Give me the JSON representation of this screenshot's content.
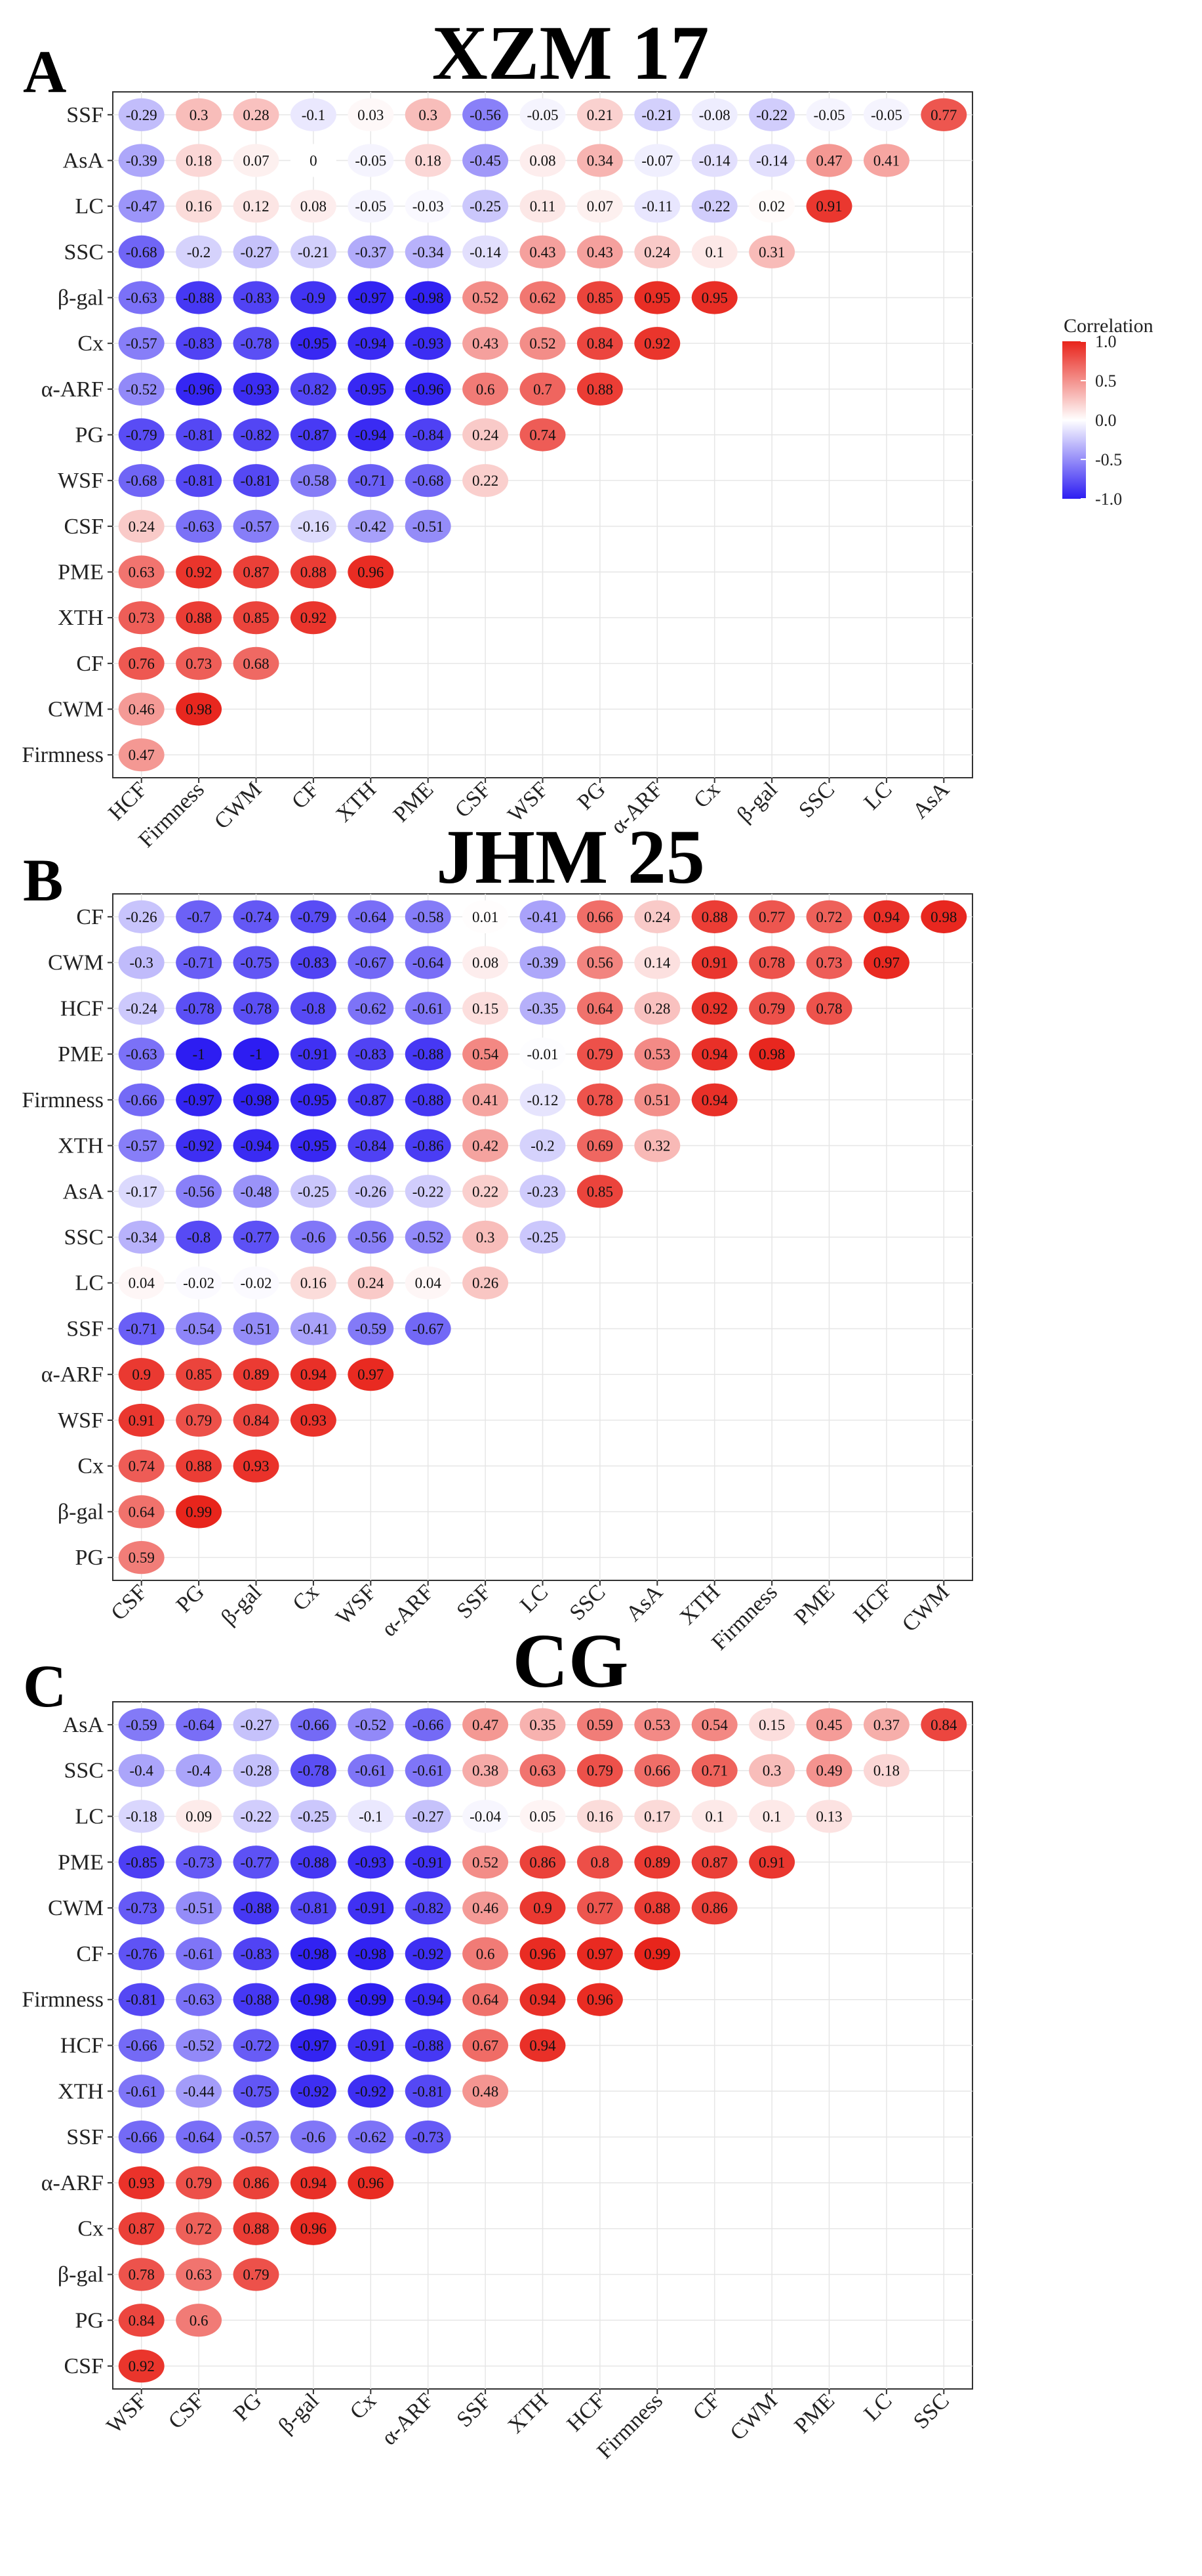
{
  "legend": {
    "title": "Correlation",
    "ticks": [
      "1.0",
      "0.5",
      "0.0",
      "-0.5",
      "-1.0"
    ],
    "tick_values": [
      1.0,
      0.5,
      0.0,
      -0.5,
      -1.0
    ],
    "colors": {
      "positive": "#e8231a",
      "neutral": "#ffffff",
      "negative": "#2d1df2"
    }
  },
  "chart_data": [
    {
      "type": "heatmap",
      "panel": "A",
      "title": "XZM 17",
      "rows": [
        "SSF",
        "AsA",
        "LC",
        "SSC",
        "β-gal",
        "Cx",
        "α-ARF",
        "PG",
        "WSF",
        "CSF",
        "PME",
        "XTH",
        "CF",
        "CWM",
        "Firmness"
      ],
      "cols": [
        "HCF",
        "Firmness",
        "CWM",
        "CF",
        "XTH",
        "PME",
        "CSF",
        "WSF",
        "PG",
        "α-ARF",
        "Cx",
        "β-gal",
        "SSC",
        "LC",
        "AsA"
      ],
      "values": [
        [
          "-0.29",
          "0.3",
          "0.28",
          "-0.1",
          "0.03",
          "0.3",
          "-0.56",
          "-0.05",
          "0.21",
          "-0.21",
          "-0.08",
          "-0.22",
          "-0.05",
          "-0.05",
          "0.77"
        ],
        [
          "-0.39",
          "0.18",
          "0.07",
          "0",
          "-0.05",
          "0.18",
          "-0.45",
          "0.08",
          "0.34",
          "-0.07",
          "-0.14",
          "-0.14",
          "0.47",
          "0.41"
        ],
        [
          "-0.47",
          "0.16",
          "0.12",
          "0.08",
          "-0.05",
          "-0.03",
          "-0.25",
          "0.11",
          "0.07",
          "-0.11",
          "-0.22",
          "0.02",
          "0.91"
        ],
        [
          "-0.68",
          "-0.2",
          "-0.27",
          "-0.21",
          "-0.37",
          "-0.34",
          "-0.14",
          "0.43",
          "0.43",
          "0.24",
          "0.1",
          "0.31"
        ],
        [
          "-0.63",
          "-0.88",
          "-0.83",
          "-0.9",
          "-0.97",
          "-0.98",
          "0.52",
          "0.62",
          "0.85",
          "0.95",
          "0.95"
        ],
        [
          "-0.57",
          "-0.83",
          "-0.78",
          "-0.95",
          "-0.94",
          "-0.93",
          "0.43",
          "0.52",
          "0.84",
          "0.92"
        ],
        [
          "-0.52",
          "-0.96",
          "-0.93",
          "-0.82",
          "-0.95",
          "-0.96",
          "0.6",
          "0.7",
          "0.88"
        ],
        [
          "-0.79",
          "-0.81",
          "-0.82",
          "-0.87",
          "-0.94",
          "-0.84",
          "0.24",
          "0.74"
        ],
        [
          "-0.68",
          "-0.81",
          "-0.81",
          "-0.58",
          "-0.71",
          "-0.68",
          "0.22"
        ],
        [
          "0.24",
          "-0.63",
          "-0.57",
          "-0.16",
          "-0.42",
          "-0.51"
        ],
        [
          "0.63",
          "0.92",
          "0.87",
          "0.88",
          "0.96"
        ],
        [
          "0.73",
          "0.88",
          "0.85",
          "0.92"
        ],
        [
          "0.76",
          "0.73",
          "0.68"
        ],
        [
          "0.46",
          "0.98"
        ],
        [
          "0.47"
        ]
      ]
    },
    {
      "type": "heatmap",
      "panel": "B",
      "title": "JHM 25",
      "rows": [
        "CF",
        "CWM",
        "HCF",
        "PME",
        "Firmness",
        "XTH",
        "AsA",
        "SSC",
        "LC",
        "SSF",
        "α-ARF",
        "WSF",
        "Cx",
        "β-gal",
        "PG"
      ],
      "cols": [
        "CSF",
        "PG",
        "β-gal",
        "Cx",
        "WSF",
        "α-ARF",
        "SSF",
        "LC",
        "SSC",
        "AsA",
        "XTH",
        "Firmness",
        "PME",
        "HCF",
        "CWM"
      ],
      "values": [
        [
          "-0.26",
          "-0.7",
          "-0.74",
          "-0.79",
          "-0.64",
          "-0.58",
          "0.01",
          "-0.41",
          "0.66",
          "0.24",
          "0.88",
          "0.77",
          "0.72",
          "0.94",
          "0.98"
        ],
        [
          "-0.3",
          "-0.71",
          "-0.75",
          "-0.83",
          "-0.67",
          "-0.64",
          "0.08",
          "-0.39",
          "0.56",
          "0.14",
          "0.91",
          "0.78",
          "0.73",
          "0.97"
        ],
        [
          "-0.24",
          "-0.78",
          "-0.78",
          "-0.8",
          "-0.62",
          "-0.61",
          "0.15",
          "-0.35",
          "0.64",
          "0.28",
          "0.92",
          "0.79",
          "0.78"
        ],
        [
          "-0.63",
          "-1",
          "-1",
          "-0.91",
          "-0.83",
          "-0.88",
          "0.54",
          "-0.01",
          "0.79",
          "0.53",
          "0.94",
          "0.98"
        ],
        [
          "-0.66",
          "-0.97",
          "-0.98",
          "-0.95",
          "-0.87",
          "-0.88",
          "0.41",
          "-0.12",
          "0.78",
          "0.51",
          "0.94"
        ],
        [
          "-0.57",
          "-0.92",
          "-0.94",
          "-0.95",
          "-0.84",
          "-0.86",
          "0.42",
          "-0.2",
          "0.69",
          "0.32"
        ],
        [
          "-0.17",
          "-0.56",
          "-0.48",
          "-0.25",
          "-0.26",
          "-0.22",
          "0.22",
          "-0.23",
          "0.85"
        ],
        [
          "-0.34",
          "-0.8",
          "-0.77",
          "-0.6",
          "-0.56",
          "-0.52",
          "0.3",
          "-0.25"
        ],
        [
          "0.04",
          "-0.02",
          "-0.02",
          "0.16",
          "0.24",
          "0.04",
          "0.26"
        ],
        [
          "-0.71",
          "-0.54",
          "-0.51",
          "-0.41",
          "-0.59",
          "-0.67"
        ],
        [
          "0.9",
          "0.85",
          "0.89",
          "0.94",
          "0.97"
        ],
        [
          "0.91",
          "0.79",
          "0.84",
          "0.93"
        ],
        [
          "0.74",
          "0.88",
          "0.93"
        ],
        [
          "0.64",
          "0.99"
        ],
        [
          "0.59"
        ]
      ]
    },
    {
      "type": "heatmap",
      "panel": "C",
      "title": "CG",
      "rows": [
        "AsA",
        "SSC",
        "LC",
        "PME",
        "CWM",
        "CF",
        "Firmness",
        "HCF",
        "XTH",
        "SSF",
        "α-ARF",
        "Cx",
        "β-gal",
        "PG",
        "CSF"
      ],
      "cols": [
        "WSF",
        "CSF",
        "PG",
        "β-gal",
        "Cx",
        "α-ARF",
        "SSF",
        "XTH",
        "HCF",
        "Firmness",
        "CF",
        "CWM",
        "PME",
        "LC",
        "SSC"
      ],
      "values": [
        [
          "-0.59",
          "-0.64",
          "-0.27",
          "-0.66",
          "-0.52",
          "-0.66",
          "0.47",
          "0.35",
          "0.59",
          "0.53",
          "0.54",
          "0.15",
          "0.45",
          "0.37",
          "0.84"
        ],
        [
          "-0.4",
          "-0.4",
          "-0.28",
          "-0.78",
          "-0.61",
          "-0.61",
          "0.38",
          "0.63",
          "0.79",
          "0.66",
          "0.71",
          "0.3",
          "0.49",
          "0.18"
        ],
        [
          "-0.18",
          "0.09",
          "-0.22",
          "-0.25",
          "-0.1",
          "-0.27",
          "-0.04",
          "0.05",
          "0.16",
          "0.17",
          "0.1",
          "0.1",
          "0.13"
        ],
        [
          "-0.85",
          "-0.73",
          "-0.77",
          "-0.88",
          "-0.93",
          "-0.91",
          "0.52",
          "0.86",
          "0.8",
          "0.89",
          "0.87",
          "0.91"
        ],
        [
          "-0.73",
          "-0.51",
          "-0.88",
          "-0.81",
          "-0.91",
          "-0.82",
          "0.46",
          "0.9",
          "0.77",
          "0.88",
          "0.86"
        ],
        [
          "-0.76",
          "-0.61",
          "-0.83",
          "-0.98",
          "-0.98",
          "-0.92",
          "0.6",
          "0.96",
          "0.97",
          "0.99"
        ],
        [
          "-0.81",
          "-0.63",
          "-0.88",
          "-0.98",
          "-0.99",
          "-0.94",
          "0.64",
          "0.94",
          "0.96"
        ],
        [
          "-0.66",
          "-0.52",
          "-0.72",
          "-0.97",
          "-0.91",
          "-0.88",
          "0.67",
          "0.94"
        ],
        [
          "-0.61",
          "-0.44",
          "-0.75",
          "-0.92",
          "-0.92",
          "-0.81",
          "0.48"
        ],
        [
          "-0.66",
          "-0.64",
          "-0.57",
          "-0.6",
          "-0.62",
          "-0.73"
        ],
        [
          "0.93",
          "0.79",
          "0.86",
          "0.94",
          "0.96"
        ],
        [
          "0.87",
          "0.72",
          "0.88",
          "0.96"
        ],
        [
          "0.78",
          "0.63",
          "0.79"
        ],
        [
          "0.84",
          "0.6"
        ],
        [
          "0.92"
        ]
      ]
    }
  ]
}
